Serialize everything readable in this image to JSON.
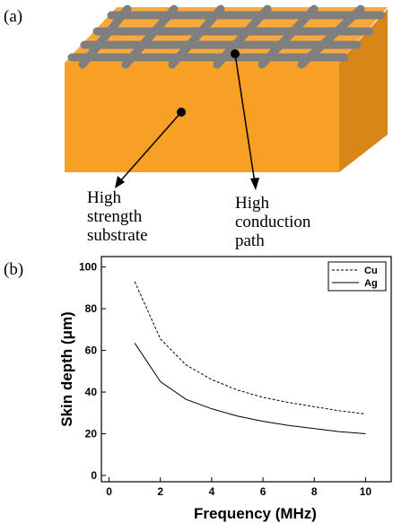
{
  "panel_a": {
    "label": "(a)",
    "annotations": [
      {
        "lines": [
          "High",
          "strength",
          "substrate"
        ]
      },
      {
        "lines": [
          "High",
          "conduction",
          "path"
        ]
      }
    ]
  },
  "panel_b": {
    "label": "(b)"
  },
  "chart_data": {
    "type": "line",
    "xlabel": "Frequency (MHz)",
    "ylabel": "Skin depth (μm)",
    "x": [
      1,
      2,
      3,
      4,
      5,
      6,
      7,
      8,
      9,
      10
    ],
    "series": [
      {
        "name": "Cu",
        "color": "#000000",
        "dash": true,
        "values": [
          93,
          65.5,
          53,
          46,
          41,
          37.5,
          35,
          33,
          31,
          29.5
        ]
      },
      {
        "name": "Ag",
        "color": "#000000",
        "dash": false,
        "values": [
          63.5,
          45,
          36.5,
          32,
          28.5,
          26,
          24,
          22.5,
          21,
          20
        ]
      }
    ],
    "xlim": [
      -0.3,
      11
    ],
    "ylim": [
      -3,
      105
    ],
    "xticks": [
      0,
      2,
      4,
      6,
      8,
      10
    ],
    "yticks": [
      0,
      20,
      40,
      60,
      80,
      100
    ],
    "legend": "upper right"
  }
}
